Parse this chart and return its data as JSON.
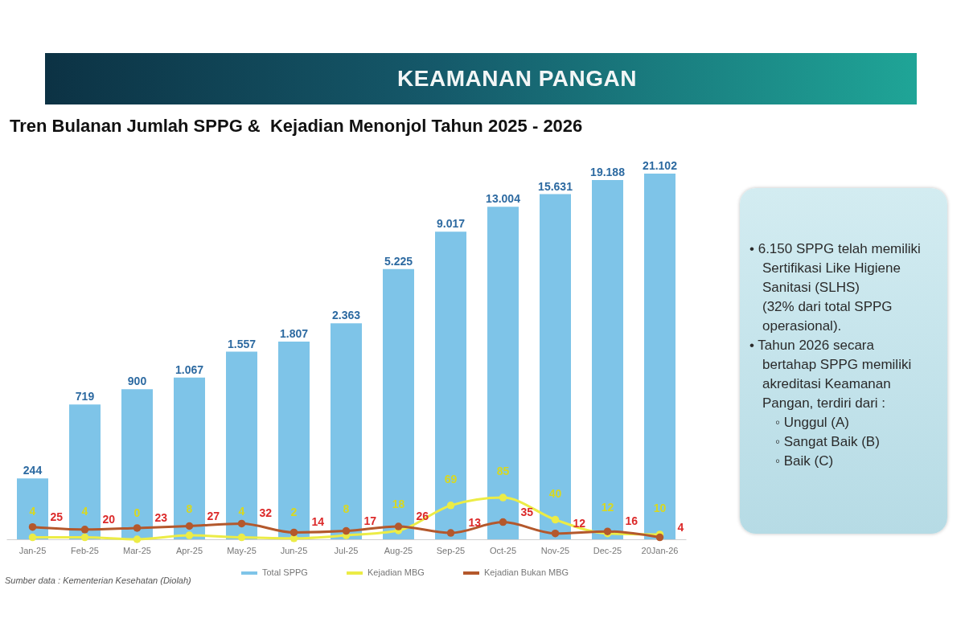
{
  "chart_data": {
    "type": "bar",
    "title": "KEAMANAN PANGAN",
    "subtitle": "Tren Bulanan Jumlah SPPG &  Kejadian Menonjol Tahun 2025 - 2026",
    "categories": [
      "Jan-25",
      "Feb-25",
      "Mar-25",
      "Apr-25",
      "May-25",
      "Jun-25",
      "Jul-25",
      "Aug-25",
      "Sep-25",
      "Oct-25",
      "Nov-25",
      "Dec-25",
      "20Jan-26"
    ],
    "series": [
      {
        "name": "Total SPPG",
        "color": "#7ec4e8",
        "values": [
          244,
          719,
          900,
          1067,
          1557,
          1807,
          2363,
          5225,
          9017,
          13004,
          15631,
          19188,
          21102
        ],
        "value_labels": [
          "244",
          "719",
          "900",
          "1.067",
          "1.557",
          "1.807",
          "2.363",
          "5.225",
          "9.017",
          "13.004",
          "15.631",
          "19.188",
          "21.102"
        ]
      },
      {
        "name": "Kejadian MBG",
        "type": "line",
        "axis": "y2",
        "color": "#ecec46",
        "values": [
          4,
          4,
          0,
          8,
          4,
          2,
          8,
          18,
          69,
          85,
          40,
          12,
          10
        ]
      },
      {
        "name": "Kejadian Bukan MBG",
        "type": "line",
        "axis": "y2",
        "color": "#b4582c",
        "values": [
          25,
          20,
          23,
          27,
          32,
          14,
          17,
          26,
          13,
          35,
          12,
          16,
          4
        ]
      }
    ],
    "log": "y",
    "ylim": [
      100,
      21102
    ],
    "tick_labels": "x",
    "data_labels": true,
    "marker": "circle",
    "legend": "bottom",
    "annotations": [
      "• 6.150 SPPG telah memiliki Sertifikasi Like Higiene Sanitasi (SLHS)\n(32% dari total SPPG operasional).",
      "• Tahun 2026 secara bertahap SPPG memiliki akreditasi Keamanan Pangan, terdiri dari :",
      "◦ Unggul (A)",
      "◦ Sangat Baik (B)",
      "◦ Baik (C)",
      "Sumber data : Kementerian Kesehatan (Diolah)"
    ]
  }
}
